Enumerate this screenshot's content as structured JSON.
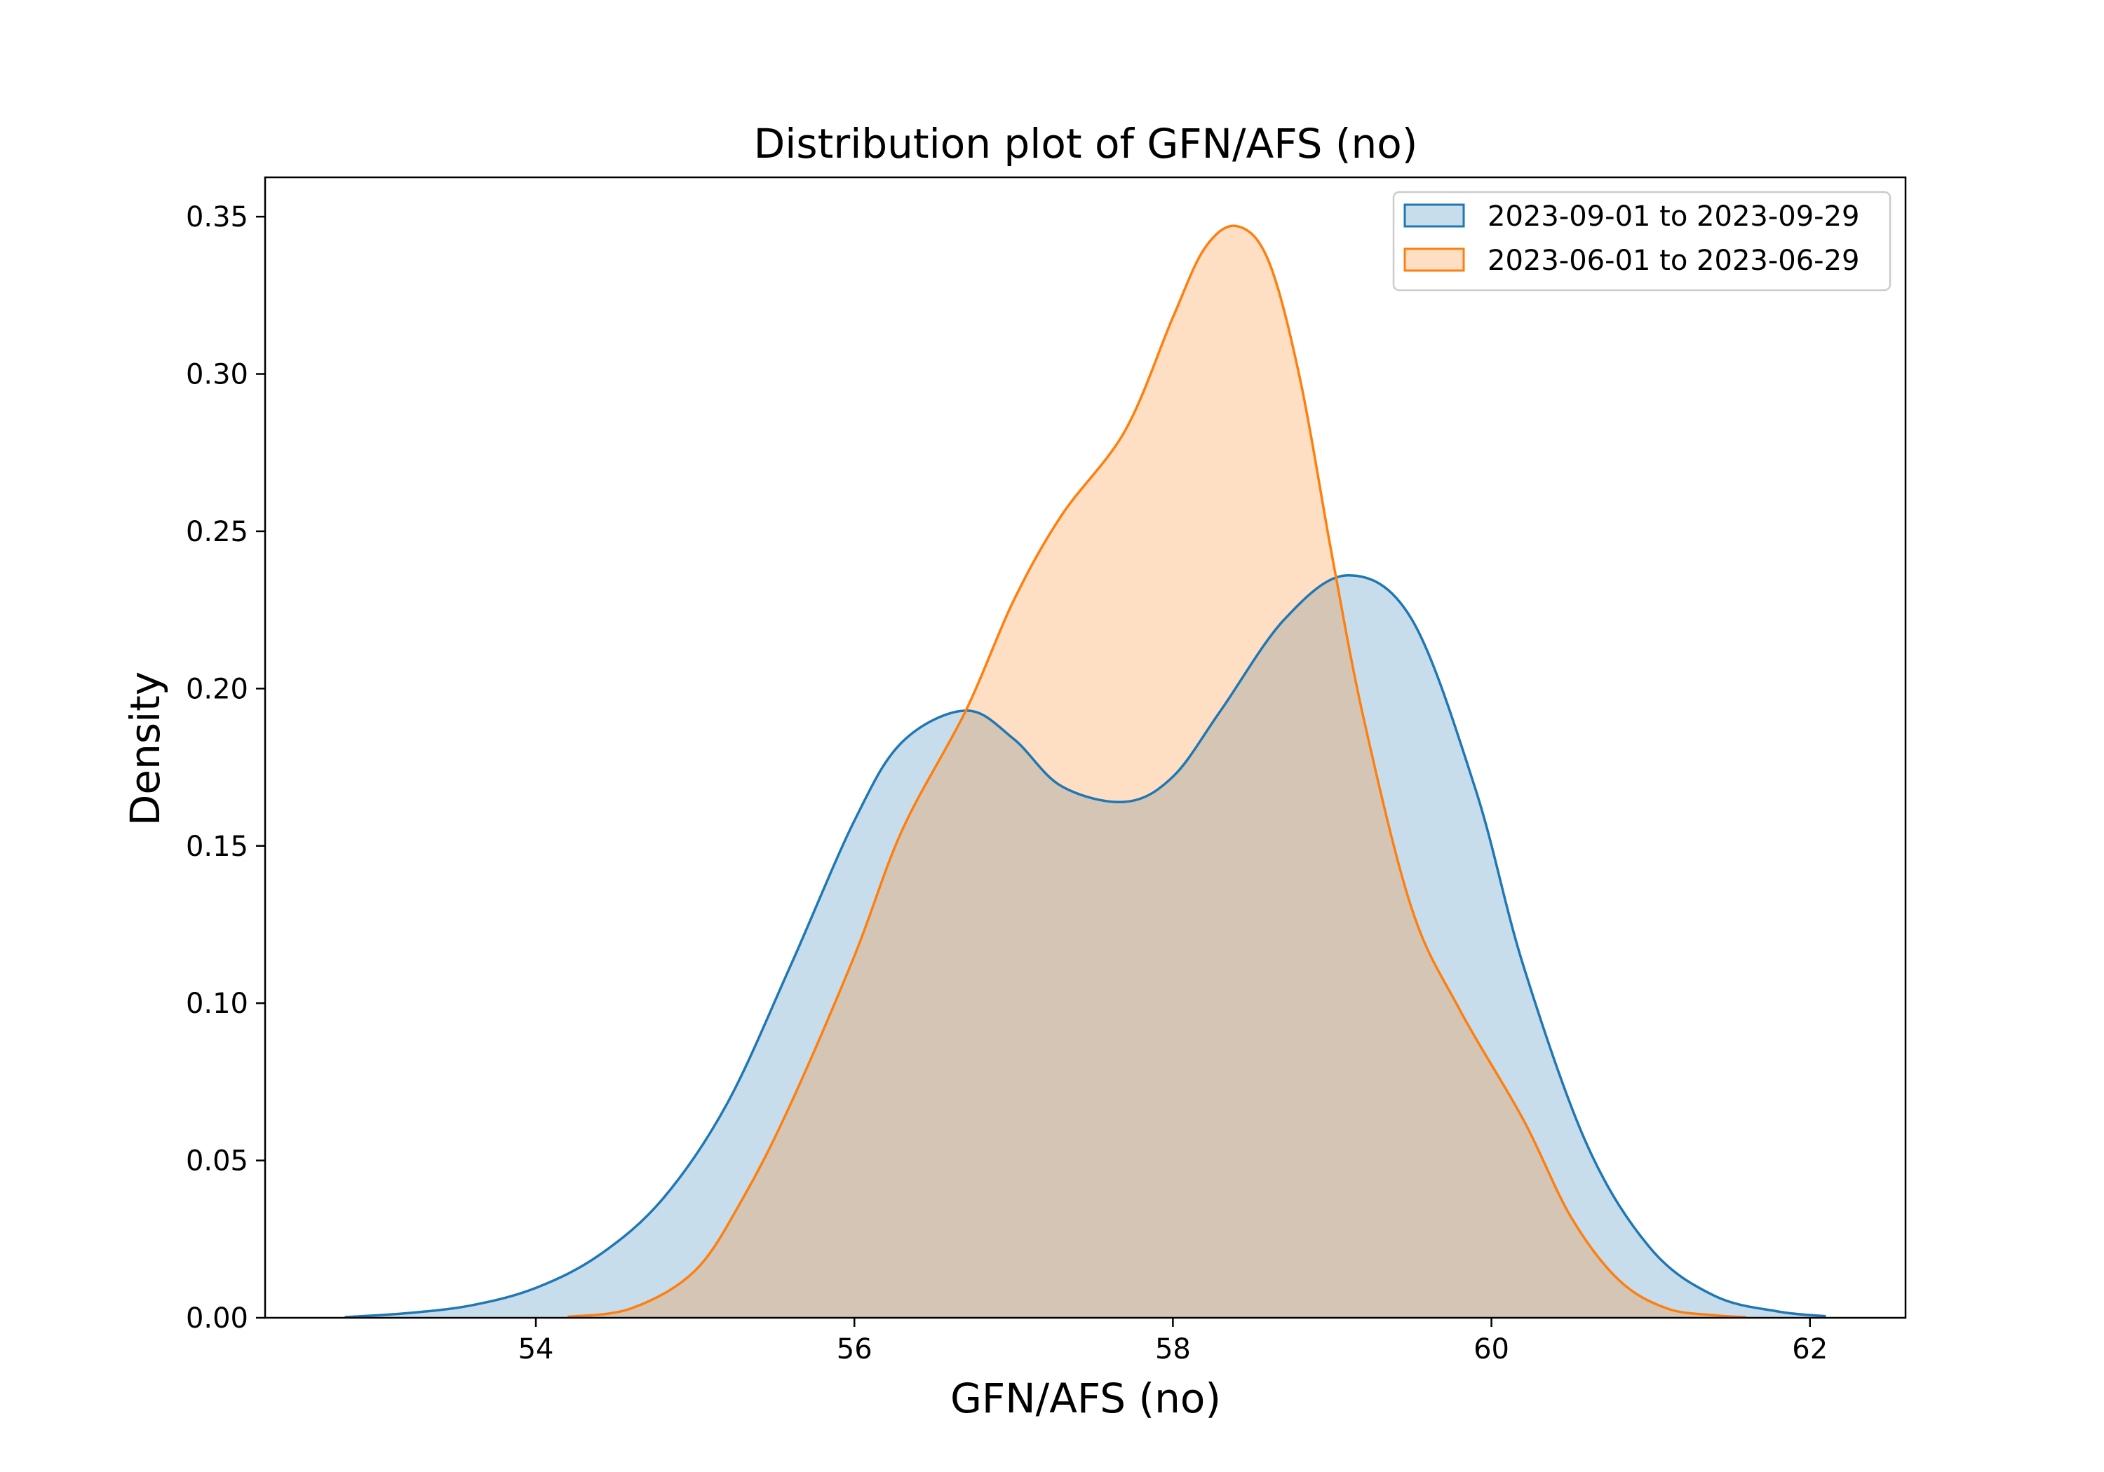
{
  "chart_data": {
    "type": "area",
    "title": "Distribution plot of GFN/AFS (no)",
    "xlabel": "GFN/AFS (no)",
    "ylabel": "Density",
    "xlim": [
      52.3,
      62.6
    ],
    "ylim": [
      0,
      0.3625
    ],
    "xticks": [
      54,
      56,
      58,
      60,
      62
    ],
    "yticks": [
      0.0,
      0.05,
      0.1,
      0.15,
      0.2,
      0.25,
      0.3,
      0.35
    ],
    "ytick_labels": [
      "0.00",
      "0.05",
      "0.10",
      "0.15",
      "0.20",
      "0.25",
      "0.30",
      "0.35"
    ],
    "xtick_labels": [
      "54",
      "56",
      "58",
      "60",
      "62"
    ],
    "grid": false,
    "legend_position": "top-right",
    "series": [
      {
        "name": "2023-09-01 to 2023-09-29",
        "color": "#1f77b4",
        "fill_opacity": 0.25,
        "x": [
          52.8,
          53.2,
          53.6,
          54.0,
          54.4,
          54.8,
          55.2,
          55.6,
          56.0,
          56.3,
          56.7,
          57.0,
          57.3,
          57.7,
          58.0,
          58.3,
          58.7,
          59.1,
          59.5,
          59.9,
          60.2,
          60.6,
          61.0,
          61.4,
          61.8,
          62.1
        ],
        "y": [
          0.0002,
          0.0015,
          0.004,
          0.0095,
          0.02,
          0.038,
          0.068,
          0.112,
          0.158,
          0.183,
          0.193,
          0.184,
          0.169,
          0.164,
          0.172,
          0.193,
          0.222,
          0.236,
          0.222,
          0.168,
          0.112,
          0.055,
          0.022,
          0.007,
          0.002,
          0.0005
        ]
      },
      {
        "name": "2023-06-01 to 2023-06-29",
        "color": "#ff7f0e",
        "fill_opacity": 0.25,
        "x": [
          54.2,
          54.6,
          55.0,
          55.3,
          55.6,
          56.0,
          56.3,
          56.7,
          57.0,
          57.3,
          57.7,
          58.0,
          58.2,
          58.4,
          58.6,
          58.8,
          59.0,
          59.2,
          59.5,
          59.8,
          60.2,
          60.5,
          60.8,
          61.1,
          61.4,
          61.6
        ],
        "y": [
          0.0003,
          0.003,
          0.015,
          0.038,
          0.068,
          0.115,
          0.155,
          0.193,
          0.228,
          0.255,
          0.282,
          0.318,
          0.34,
          0.347,
          0.336,
          0.298,
          0.242,
          0.19,
          0.13,
          0.098,
          0.063,
          0.032,
          0.012,
          0.003,
          0.0008,
          0.0002
        ]
      }
    ]
  }
}
